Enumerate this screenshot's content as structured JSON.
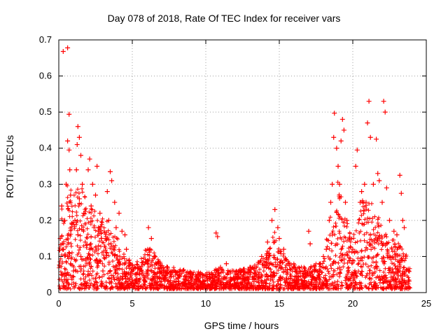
{
  "chart_data": {
    "type": "scatter",
    "title": "Day 078 of 2018, Rate Of TEC Index for receiver vars",
    "xlabel": "GPS time / hours",
    "ylabel": "ROTI / TECUs",
    "xlim": [
      0,
      25
    ],
    "ylim": [
      0,
      0.7
    ],
    "xticks": [
      "0",
      "5",
      "10",
      "15",
      "20",
      "25"
    ],
    "yticks": [
      "0",
      "0.1",
      "0.2",
      "0.3",
      "0.4",
      "0.5",
      "0.6",
      "0.7"
    ],
    "grid": true,
    "marker": "+",
    "color": "#ff0000",
    "series": [
      {
        "name": "ROTI",
        "points": [
          [
            0.3,
            0.668
          ],
          [
            0.6,
            0.678
          ],
          [
            0.7,
            0.494
          ],
          [
            0.6,
            0.42
          ],
          [
            0.7,
            0.395
          ],
          [
            0.75,
            0.34
          ],
          [
            0.5,
            0.3
          ],
          [
            0.8,
            0.27
          ],
          [
            0.2,
            0.24
          ],
          [
            0.4,
            0.2
          ],
          [
            0.9,
            0.19
          ],
          [
            0.1,
            0.15
          ],
          [
            0.3,
            0.12
          ],
          [
            0.6,
            0.1
          ],
          [
            0.8,
            0.08
          ],
          [
            1.0,
            0.06
          ],
          [
            0.2,
            0.05
          ],
          [
            0.5,
            0.035
          ],
          [
            1.3,
            0.46
          ],
          [
            1.4,
            0.43
          ],
          [
            1.25,
            0.41
          ],
          [
            1.5,
            0.38
          ],
          [
            1.2,
            0.34
          ],
          [
            1.6,
            0.3
          ],
          [
            1.4,
            0.26
          ],
          [
            1.7,
            0.22
          ],
          [
            1.1,
            0.2
          ],
          [
            1.3,
            0.16
          ],
          [
            1.8,
            0.14
          ],
          [
            1.5,
            0.1
          ],
          [
            2.1,
            0.37
          ],
          [
            2.0,
            0.34
          ],
          [
            2.6,
            0.35
          ],
          [
            2.3,
            0.3
          ],
          [
            2.5,
            0.27
          ],
          [
            2.2,
            0.24
          ],
          [
            2.8,
            0.22
          ],
          [
            2.4,
            0.18
          ],
          [
            2.9,
            0.15
          ],
          [
            2.1,
            0.12
          ],
          [
            2.6,
            0.09
          ],
          [
            3.0,
            0.06
          ],
          [
            3.5,
            0.335
          ],
          [
            3.6,
            0.31
          ],
          [
            3.3,
            0.28
          ],
          [
            3.8,
            0.25
          ],
          [
            3.4,
            0.2
          ],
          [
            3.9,
            0.18
          ],
          [
            3.2,
            0.15
          ],
          [
            3.7,
            0.12
          ],
          [
            4.0,
            0.09
          ],
          [
            3.5,
            0.06
          ],
          [
            4.1,
            0.22
          ],
          [
            4.3,
            0.17
          ],
          [
            4.5,
            0.16
          ],
          [
            4.6,
            0.12
          ],
          [
            4.8,
            0.09
          ],
          [
            5.0,
            0.07
          ],
          [
            5.2,
            0.05
          ],
          [
            5.5,
            0.06
          ],
          [
            6.1,
            0.18
          ],
          [
            6.3,
            0.15
          ],
          [
            6.2,
            0.12
          ],
          [
            6.5,
            0.1
          ],
          [
            6.8,
            0.08
          ],
          [
            7.0,
            0.06
          ],
          [
            7.4,
            0.07
          ],
          [
            7.8,
            0.06
          ],
          [
            8.2,
            0.05
          ],
          [
            8.6,
            0.045
          ],
          [
            9.0,
            0.04
          ],
          [
            9.4,
            0.035
          ],
          [
            9.8,
            0.03
          ],
          [
            10.2,
            0.04
          ],
          [
            10.5,
            0.05
          ],
          [
            10.7,
            0.165
          ],
          [
            10.8,
            0.155
          ],
          [
            11.0,
            0.07
          ],
          [
            11.4,
            0.08
          ],
          [
            11.8,
            0.06
          ],
          [
            12.2,
            0.05
          ],
          [
            12.6,
            0.06
          ],
          [
            13.0,
            0.07
          ],
          [
            13.4,
            0.06
          ],
          [
            13.8,
            0.1
          ],
          [
            14.2,
            0.14
          ],
          [
            14.5,
            0.2
          ],
          [
            14.7,
            0.23
          ],
          [
            14.9,
            0.18
          ],
          [
            15.0,
            0.15
          ],
          [
            15.3,
            0.12
          ],
          [
            15.6,
            0.08
          ],
          [
            16.0,
            0.07
          ],
          [
            16.4,
            0.06
          ],
          [
            16.8,
            0.05
          ],
          [
            17.0,
            0.17
          ],
          [
            17.1,
            0.135
          ],
          [
            17.4,
            0.06
          ],
          [
            17.8,
            0.08
          ],
          [
            18.0,
            0.1
          ],
          [
            18.2,
            0.12
          ],
          [
            18.4,
            0.2
          ],
          [
            18.5,
            0.25
          ],
          [
            18.6,
            0.3
          ],
          [
            18.7,
            0.43
          ],
          [
            18.75,
            0.497
          ],
          [
            18.9,
            0.4
          ],
          [
            19.0,
            0.35
          ],
          [
            19.1,
            0.3
          ],
          [
            19.2,
            0.42
          ],
          [
            19.3,
            0.48
          ],
          [
            19.4,
            0.45
          ],
          [
            19.5,
            0.25
          ],
          [
            19.6,
            0.2
          ],
          [
            19.8,
            0.15
          ],
          [
            20.0,
            0.12
          ],
          [
            20.2,
            0.35
          ],
          [
            20.3,
            0.395
          ],
          [
            20.5,
            0.25
          ],
          [
            20.6,
            0.28
          ],
          [
            20.8,
            0.3
          ],
          [
            20.9,
            0.25
          ],
          [
            21.0,
            0.47
          ],
          [
            21.1,
            0.53
          ],
          [
            21.2,
            0.43
          ],
          [
            21.4,
            0.3
          ],
          [
            21.6,
            0.425
          ],
          [
            21.7,
            0.33
          ],
          [
            21.8,
            0.31
          ],
          [
            22.0,
            0.25
          ],
          [
            22.1,
            0.53
          ],
          [
            22.2,
            0.5
          ],
          [
            22.3,
            0.29
          ],
          [
            22.5,
            0.2
          ],
          [
            22.8,
            0.17
          ],
          [
            23.0,
            0.16
          ],
          [
            23.2,
            0.325
          ],
          [
            23.3,
            0.275
          ],
          [
            23.4,
            0.2
          ],
          [
            23.5,
            0.18
          ],
          [
            23.6,
            0.1
          ],
          [
            23.8,
            0.06
          ]
        ]
      }
    ]
  }
}
